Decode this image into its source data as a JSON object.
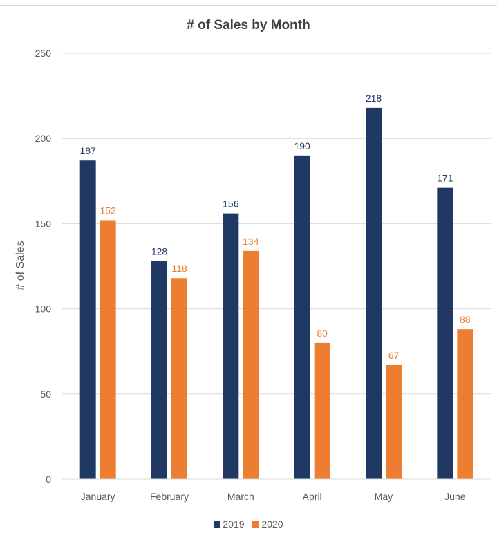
{
  "chart_data": {
    "type": "bar",
    "title": "# of Sales by Month",
    "xlabel": "",
    "ylabel": "# of Sales",
    "categories": [
      "January",
      "February",
      "March",
      "April",
      "May",
      "June"
    ],
    "series": [
      {
        "name": "2019",
        "color": "#203864",
        "values": [
          187,
          128,
          156,
          190,
          218,
          171
        ]
      },
      {
        "name": "2020",
        "color": "#ed7d31",
        "values": [
          152,
          118,
          134,
          80,
          67,
          88
        ]
      }
    ],
    "ylim": [
      0,
      250
    ],
    "yticks": [
      "0",
      "50",
      "100",
      "150",
      "200",
      "250"
    ],
    "grid": true,
    "legend": "bottom",
    "data_labels": true
  }
}
